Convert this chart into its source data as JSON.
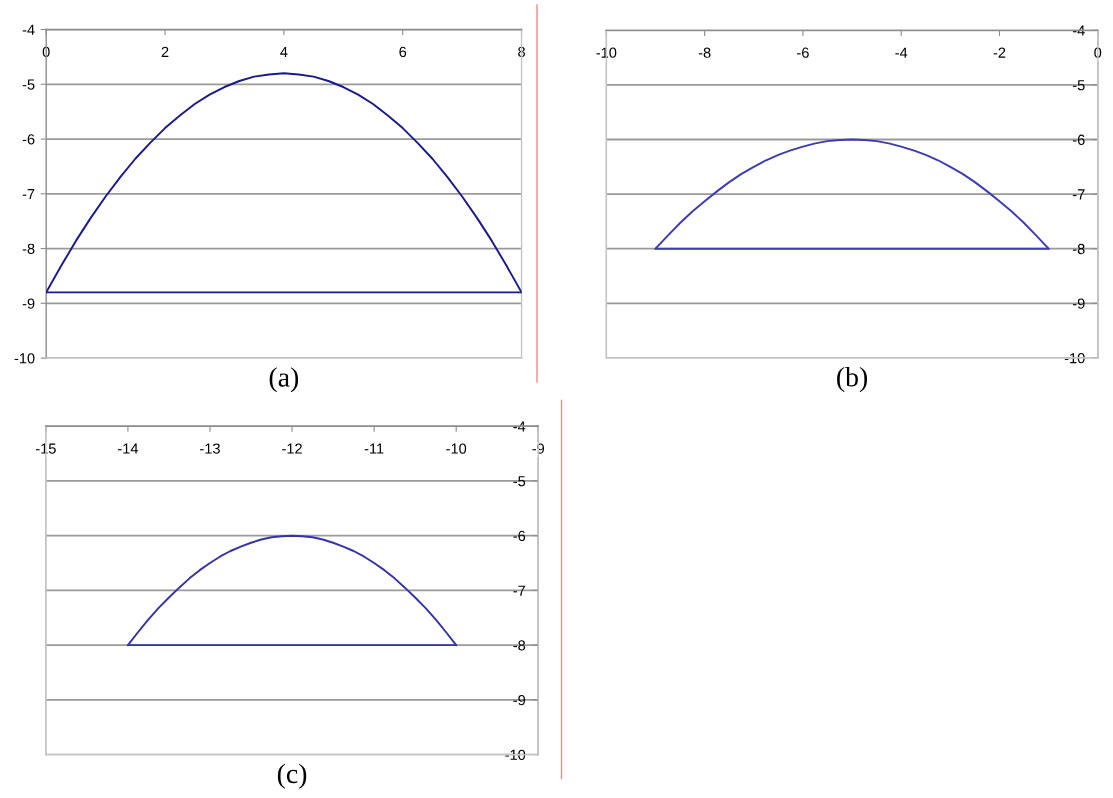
{
  "chart_data": [
    {
      "type": "line",
      "title": "(a)",
      "xlim": [
        0,
        8
      ],
      "xticks": [
        0,
        2,
        4,
        6,
        8
      ],
      "ylim": [
        -10,
        -4
      ],
      "yticks": [
        -10,
        -9,
        -8,
        -7,
        -6,
        -5,
        -4
      ],
      "grid": "y",
      "line_style": "solid",
      "series": [
        {
          "color": "#1a1a8e",
          "x": [
            0,
            0.25,
            0.5,
            0.75,
            1,
            1.25,
            1.5,
            1.75,
            2,
            2.25,
            2.5,
            2.75,
            3,
            3.25,
            3.5,
            3.75,
            4,
            4.25,
            4.5,
            4.75,
            5,
            5.25,
            5.5,
            5.75,
            6,
            6.25,
            6.5,
            6.75,
            7,
            7.25,
            7.5,
            7.75,
            8
          ],
          "values": [
            -8.8,
            -8.32,
            -7.86,
            -7.44,
            -7.05,
            -6.69,
            -6.36,
            -6.07,
            -5.8,
            -5.57,
            -5.36,
            -5.19,
            -5.05,
            -4.94,
            -4.86,
            -4.82,
            -4.8,
            -4.82,
            -4.86,
            -4.94,
            -5.05,
            -5.19,
            -5.36,
            -5.57,
            -5.8,
            -6.07,
            -6.36,
            -6.69,
            -7.05,
            -7.44,
            -7.86,
            -8.32,
            -8.8
          ]
        },
        {
          "color": "#1a1a8e",
          "x": [
            0,
            8
          ],
          "values": [
            -8.8,
            -8.8
          ]
        }
      ]
    },
    {
      "type": "line",
      "title": "(b)",
      "xlim": [
        -10,
        0
      ],
      "xticks": [
        -10,
        -8,
        -6,
        -4,
        -2,
        0
      ],
      "y2lim": [
        -10,
        -4
      ],
      "y2ticks": [
        -10,
        -9,
        -8,
        -7,
        -6,
        -5,
        -4
      ],
      "grid": "y",
      "line_style": "solid",
      "series": [
        {
          "color": "#3c3cb4",
          "axis": "y2",
          "x": [
            -9,
            -8.75,
            -8.5,
            -8.25,
            -8,
            -7.75,
            -7.5,
            -7.25,
            -7,
            -6.75,
            -6.5,
            -6.25,
            -6,
            -5.75,
            -5.5,
            -5.25,
            -5,
            -4.75,
            -4.5,
            -4.25,
            -4,
            -3.75,
            -3.5,
            -3.25,
            -3,
            -2.75,
            -2.5,
            -2.25,
            -2,
            -1.75,
            -1.5,
            -1.25,
            -1
          ],
          "values": [
            -8,
            -7.76,
            -7.53,
            -7.32,
            -7.13,
            -6.95,
            -6.78,
            -6.63,
            -6.5,
            -6.38,
            -6.28,
            -6.2,
            -6.13,
            -6.07,
            -6.03,
            -6.01,
            -6,
            -6.01,
            -6.03,
            -6.07,
            -6.13,
            -6.2,
            -6.28,
            -6.38,
            -6.5,
            -6.63,
            -6.78,
            -6.95,
            -7.13,
            -7.32,
            -7.53,
            -7.76,
            -8
          ]
        },
        {
          "color": "#3c3cb4",
          "axis": "y2",
          "x": [
            -9,
            -1
          ],
          "values": [
            -8,
            -8
          ]
        }
      ]
    },
    {
      "type": "line",
      "title": "(c)",
      "xlim": [
        -15,
        -9
      ],
      "xticks": [
        -15,
        -14,
        -13,
        -12,
        -11,
        -10,
        -9
      ],
      "y2lim": [
        -10,
        -4
      ],
      "y2ticks": [
        -10,
        -9,
        -8,
        -7,
        -6,
        -5,
        -4
      ],
      "grid": "y",
      "line_style": "solid",
      "series": [
        {
          "color": "#3434a8",
          "axis": "y2",
          "x": [
            -14,
            -13.875,
            -13.75,
            -13.625,
            -13.5,
            -13.375,
            -13.25,
            -13.125,
            -13,
            -12.875,
            -12.75,
            -12.625,
            -12.5,
            -12.375,
            -12.25,
            -12.125,
            -12,
            -11.875,
            -11.75,
            -11.625,
            -11.5,
            -11.375,
            -11.25,
            -11.125,
            -11,
            -10.875,
            -10.75,
            -10.625,
            -10.5,
            -10.375,
            -10.25,
            -10.125,
            -10
          ],
          "values": [
            -8,
            -7.76,
            -7.53,
            -7.32,
            -7.13,
            -6.95,
            -6.78,
            -6.63,
            -6.5,
            -6.38,
            -6.28,
            -6.2,
            -6.13,
            -6.07,
            -6.03,
            -6.01,
            -6,
            -6.01,
            -6.03,
            -6.07,
            -6.13,
            -6.2,
            -6.28,
            -6.38,
            -6.5,
            -6.63,
            -6.78,
            -6.95,
            -7.13,
            -7.32,
            -7.53,
            -7.76,
            -8
          ]
        },
        {
          "color": "#3434a8",
          "axis": "y2",
          "x": [
            -14,
            -10
          ],
          "values": [
            -8,
            -8
          ]
        }
      ]
    }
  ]
}
